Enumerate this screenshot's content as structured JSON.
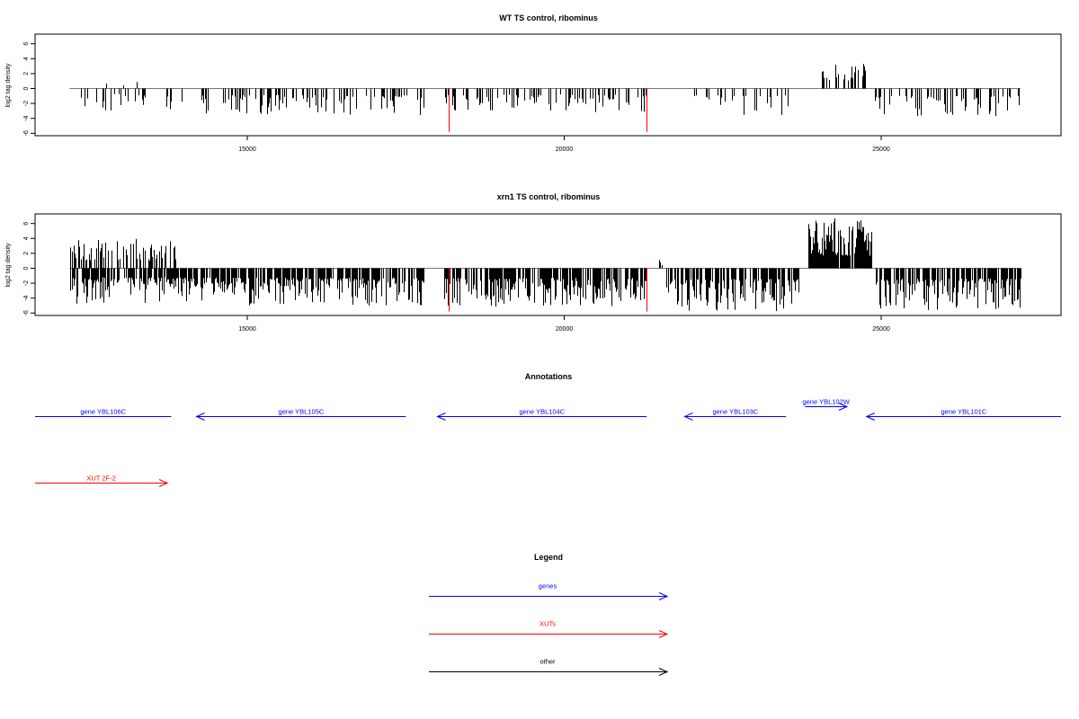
{
  "chart_data": [
    {
      "type": "bar",
      "title": "WT TS control, ribominus",
      "ylabel": "log2 tag density",
      "xlim": [
        11900,
        28300
      ],
      "ylim": [
        -6.2,
        7.2
      ],
      "xticks": [
        "15000",
        "20000",
        "25000"
      ],
      "yticks": [
        "6",
        "4",
        "2",
        "0",
        "-2",
        "-4",
        "-6"
      ],
      "baseline": {
        "x_start": 12200,
        "x_end": 27200
      },
      "colors": {
        "signal": "#000000",
        "marker": "#ff0000"
      },
      "marker_lines": [
        {
          "x": 18180,
          "y": -5.8
        },
        {
          "x": 21300,
          "y": -5.8
        }
      ],
      "positive_clusters": [
        {
          "x_start": 24000,
          "x_end": 24850,
          "max": 3.6,
          "density": 0.35
        },
        {
          "x_start": 12500,
          "x_end": 13300,
          "max": 1.6,
          "density": 0.02
        }
      ],
      "negative_segments": [
        {
          "x_start": 12200,
          "x_end": 14000,
          "max": -3.0,
          "density": 0.15
        },
        {
          "x_start": 14000,
          "x_end": 17800,
          "max": -3.6,
          "density": 0.32
        },
        {
          "x_start": 18100,
          "x_end": 21300,
          "max": -3.2,
          "density": 0.3
        },
        {
          "x_start": 22000,
          "x_end": 23600,
          "max": -3.6,
          "density": 0.22
        },
        {
          "x_start": 24900,
          "x_end": 27200,
          "max": -4.0,
          "density": 0.28
        }
      ]
    },
    {
      "type": "bar",
      "title": "xrn1 TS control, ribominus",
      "ylabel": "log2 tag density",
      "xlim": [
        11900,
        28300
      ],
      "ylim": [
        -6.2,
        7.2
      ],
      "xticks": [
        "15000",
        "20000",
        "25000"
      ],
      "yticks": [
        "6",
        "4",
        "2",
        "0",
        "-2",
        "-4",
        "-6"
      ],
      "baseline": {
        "x_start": 12200,
        "x_end": 27200
      },
      "colors": {
        "signal": "#000000",
        "marker": "#ff0000"
      },
      "marker_lines": [
        {
          "x": 18180,
          "y": -5.8
        },
        {
          "x": 21300,
          "y": -5.8
        }
      ],
      "positive_clusters": [
        {
          "x_start": 12200,
          "x_end": 13900,
          "max": 4.0,
          "density": 0.4
        },
        {
          "x_start": 23850,
          "x_end": 24850,
          "max": 6.7,
          "density": 0.95
        },
        {
          "x_start": 21500,
          "x_end": 21550,
          "max": 1.7,
          "density": 0.5
        }
      ],
      "negative_segments": [
        {
          "x_start": 12200,
          "x_end": 14000,
          "max": -4.8,
          "density": 0.7
        },
        {
          "x_start": 14000,
          "x_end": 17800,
          "max": -5.0,
          "density": 0.75
        },
        {
          "x_start": 18100,
          "x_end": 21300,
          "max": -5.2,
          "density": 0.75
        },
        {
          "x_start": 21600,
          "x_end": 23700,
          "max": -5.8,
          "density": 0.65
        },
        {
          "x_start": 24900,
          "x_end": 27200,
          "max": -5.6,
          "density": 0.7
        }
      ]
    }
  ],
  "annotations": {
    "title": "Annotations",
    "items": [
      {
        "label": "gene YBL106C",
        "start": 11600,
        "end": 13800,
        "strand": "-",
        "row": 0,
        "color": "#0000ff"
      },
      {
        "label": "gene YBL105C",
        "start": 14200,
        "end": 17500,
        "strand": "-",
        "row": 0,
        "color": "#0000ff"
      },
      {
        "label": "gene YBL104C",
        "start": 18000,
        "end": 21300,
        "strand": "-",
        "row": 0,
        "color": "#0000ff"
      },
      {
        "label": "gene YBL103C",
        "start": 21900,
        "end": 23500,
        "strand": "-",
        "row": 0,
        "color": "#0000ff"
      },
      {
        "label": "gene YBL102W",
        "start": 23800,
        "end": 24460,
        "strand": "+",
        "row": 1,
        "color": "#0000ff"
      },
      {
        "label": "gene YBL101C",
        "start": 24770,
        "end": 29000,
        "strand": "-",
        "row": 0,
        "color": "#0000ff"
      },
      {
        "label": "XUT 2F-2",
        "start": 11600,
        "end": 13740,
        "strand": "+",
        "row": 2,
        "color": "#ff0000"
      }
    ]
  },
  "legend": {
    "title": "Legend",
    "items": [
      {
        "label": "genes",
        "color": "#0000ff"
      },
      {
        "label": "XUTs",
        "color": "#ff0000"
      },
      {
        "label": "other",
        "color": "#000000"
      }
    ]
  }
}
